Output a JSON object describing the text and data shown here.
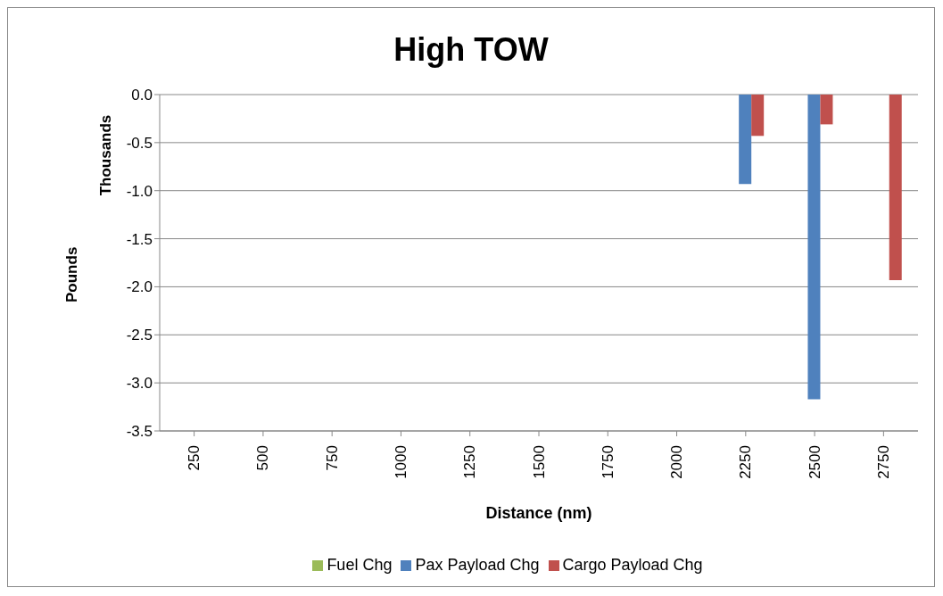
{
  "chart_data": {
    "type": "bar",
    "title": "High TOW",
    "xlabel": "Distance (nm)",
    "ylabel": "Pounds",
    "annotations": [
      "Thousands"
    ],
    "categories": [
      "250",
      "500",
      "750",
      "1000",
      "1250",
      "1500",
      "1750",
      "2000",
      "2250",
      "2500",
      "2750"
    ],
    "series": [
      {
        "name": "Fuel Chg",
        "color": "#9bbb59",
        "values": [
          0,
          0,
          0,
          0,
          0,
          0,
          0,
          0,
          0,
          0,
          0
        ]
      },
      {
        "name": "Pax Payload Chg",
        "color": "#4f81bd",
        "values": [
          0,
          0,
          0,
          0,
          0,
          0,
          0,
          0,
          -0.93,
          -3.17,
          0
        ]
      },
      {
        "name": "Cargo Payload Chg",
        "color": "#c0504d",
        "values": [
          0,
          0,
          0,
          0,
          0,
          0,
          0,
          0,
          -0.43,
          -0.31,
          -1.93
        ]
      }
    ],
    "ylim": [
      -3.5,
      0
    ],
    "yticks": [
      {
        "value": 0,
        "label": "0.0"
      },
      {
        "value": -0.5,
        "label": "-0.5"
      },
      {
        "value": -1,
        "label": "-1.0"
      },
      {
        "value": -1.5,
        "label": "-1.5"
      },
      {
        "value": -2,
        "label": "-2.0"
      },
      {
        "value": -2.5,
        "label": "-2.5"
      },
      {
        "value": -3,
        "label": "-3.0"
      },
      {
        "value": -3.5,
        "label": "-3.5"
      }
    ],
    "grid": "y",
    "legend": "bottom"
  }
}
